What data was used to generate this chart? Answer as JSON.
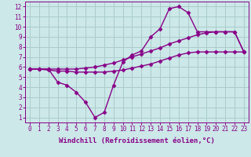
{
  "xlabel": "Windchill (Refroidissement éolien,°C)",
  "bg_color": "#cce8e8",
  "grid_color": "#aacccc",
  "line_color": "#880088",
  "xlim": [
    -0.5,
    23.5
  ],
  "ylim": [
    0.5,
    12.5
  ],
  "xticks": [
    0,
    1,
    2,
    3,
    4,
    5,
    6,
    7,
    8,
    9,
    10,
    11,
    12,
    13,
    14,
    15,
    16,
    17,
    18,
    19,
    20,
    21,
    22,
    23
  ],
  "yticks": [
    1,
    2,
    3,
    4,
    5,
    6,
    7,
    8,
    9,
    10,
    11,
    12
  ],
  "line1_x": [
    0,
    1,
    2,
    3,
    4,
    5,
    6,
    7,
    8,
    9,
    10,
    11,
    12,
    13,
    14,
    15,
    16,
    17,
    18,
    19,
    20,
    21,
    22,
    23
  ],
  "line1_y": [
    5.8,
    5.8,
    5.7,
    5.6,
    5.6,
    5.5,
    5.5,
    5.5,
    5.5,
    5.6,
    5.7,
    5.9,
    6.1,
    6.3,
    6.6,
    6.9,
    7.2,
    7.4,
    7.5,
    7.5,
    7.5,
    7.5,
    7.5,
    7.5
  ],
  "line2_x": [
    0,
    1,
    2,
    3,
    4,
    5,
    6,
    7,
    8,
    9,
    10,
    11,
    12,
    13,
    14,
    15,
    16,
    17,
    18,
    19,
    20,
    21,
    22,
    23
  ],
  "line2_y": [
    5.8,
    5.8,
    5.8,
    5.8,
    5.8,
    5.8,
    5.9,
    6.0,
    6.2,
    6.4,
    6.7,
    7.0,
    7.3,
    7.6,
    7.9,
    8.3,
    8.6,
    8.9,
    9.2,
    9.4,
    9.5,
    9.5,
    9.5,
    7.5
  ],
  "line3_x": [
    0,
    1,
    2,
    3,
    4,
    5,
    6,
    7,
    8,
    9,
    10,
    11,
    12,
    13,
    14,
    15,
    16,
    17,
    18,
    19,
    20,
    21,
    22,
    23
  ],
  "line3_y": [
    5.8,
    5.8,
    5.8,
    4.5,
    4.2,
    3.5,
    2.5,
    1.0,
    1.5,
    4.2,
    6.5,
    7.2,
    7.6,
    9.0,
    9.8,
    11.8,
    12.0,
    11.4,
    9.5,
    9.5,
    9.5,
    9.5,
    9.5,
    7.5
  ],
  "marker": "D",
  "markersize": 2.5,
  "linewidth": 1.0,
  "xlabel_fontsize": 6.5,
  "tick_fontsize": 5.5
}
